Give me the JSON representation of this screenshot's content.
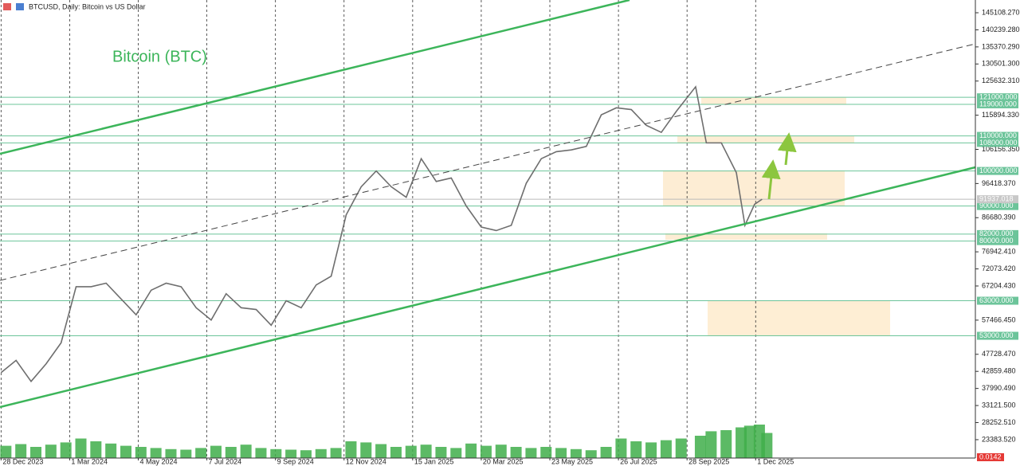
{
  "chart_data": {
    "type": "line",
    "title": "BTCUSD, Daily:  Bitcoin vs US Dollar",
    "annotation": "Bitcoin (BTC)",
    "x": [
      "28 Dec 2023",
      "11 Jan 2024",
      "25 Jan 2024",
      "8 Feb 2024",
      "22 Feb 2024",
      "7 Mar 2024",
      "21 Mar 2024",
      "4 Apr 2024",
      "18 Apr 2024",
      "2 May 2024",
      "16 May 2024",
      "30 May 2024",
      "13 Jun 2024",
      "27 Jun 2024",
      "11 Jul 2024",
      "25 Jul 2024",
      "8 Aug 2024",
      "22 Aug 2024",
      "5 Sep 2024",
      "19 Sep 2024",
      "3 Oct 2024",
      "17 Oct 2024",
      "31 Oct 2024",
      "14 Nov 2024",
      "28 Nov 2024",
      "12 Dec 2024",
      "26 Dec 2024",
      "9 Jan 2025",
      "23 Jan 2025",
      "6 Feb 2025",
      "20 Feb 2025",
      "6 Mar 2025",
      "20 Mar 2025",
      "3 Apr 2025",
      "17 Apr 2025",
      "1 May 2025",
      "15 May 2025",
      "29 May 2025",
      "12 Jun 2025",
      "26 Jun 2025",
      "10 Jul 2025",
      "24 Jul 2025",
      "7 Aug 2025",
      "21 Aug 2025",
      "4 Sep 2025",
      "18 Sep 2025",
      "6 Oct 2025",
      "16 Oct 2025",
      "30 Oct 2025",
      "13 Nov 2025",
      "21 Nov 2025",
      "30 Nov 2025",
      "7 Dec 2025"
    ],
    "series": [
      {
        "color": "#6e6e6e",
        "values": [
          42500,
          46000,
          40000,
          45000,
          51000,
          67000,
          67000,
          68000,
          63500,
          59000,
          66000,
          68000,
          67000,
          61000,
          57500,
          65000,
          61000,
          60500,
          56000,
          63000,
          61000,
          67500,
          70000,
          87500,
          95500,
          100000,
          95500,
          92500,
          103500,
          97000,
          98000,
          90000,
          84000,
          83000,
          84500,
          96500,
          103500,
          105500,
          106000,
          107000,
          116000,
          118000,
          117500,
          113000,
          111000,
          117000,
          124000,
          108000,
          108000,
          99500,
          84500,
          90500,
          91937.018
        ]
      },
      {
        "color": "#3fae4a",
        "axis": "y2",
        "values": [
          22,
          25,
          20,
          24,
          28,
          35,
          30,
          26,
          22,
          20,
          18,
          16,
          15,
          18,
          22,
          20,
          24,
          18,
          16,
          15,
          14,
          16,
          18,
          30,
          28,
          25,
          20,
          22,
          24,
          20,
          18,
          26,
          22,
          24,
          20,
          18,
          20,
          18,
          16,
          14,
          20,
          35,
          30,
          28,
          32,
          35,
          40,
          48,
          50,
          55,
          58,
          60,
          45
        ]
      }
    ],
    "xlim": [
      "27 Dec 2023",
      "24 Jun 2026"
    ],
    "xticks": [
      "28 Dec 2023",
      "1 Mar 2024",
      "4 May 2024",
      "7 Jul 2024",
      "9 Sep 2024",
      "12 Nov 2024",
      "15 Jan 2025",
      "20 Mar 2025",
      "23 May 2025",
      "26 Jul 2025",
      "28 Sep 2025",
      "1 Dec 2025"
    ],
    "ylim": [
      18149,
      148742
    ],
    "yticks": [
      {
        "value": 145108.27,
        "label": "145108.270"
      },
      {
        "value": 140239.28,
        "label": "140239.280"
      },
      {
        "value": 135370.29,
        "label": "135370.290"
      },
      {
        "value": 130501.3,
        "label": "130501.300"
      },
      {
        "value": 125632.31,
        "label": "125632.310"
      },
      {
        "value": 115894.33,
        "label": "115894.330"
      },
      {
        "value": 106156.35,
        "label": "106156.350"
      },
      {
        "value": 96418.37,
        "label": "96418.370"
      },
      {
        "value": 86680.39,
        "label": "86680.390"
      },
      {
        "value": 76942.41,
        "label": "76942.410"
      },
      {
        "value": 72073.42,
        "label": "72073.420"
      },
      {
        "value": 67204.43,
        "label": "67204.430"
      },
      {
        "value": 57466.45,
        "label": "57466.450"
      },
      {
        "value": 47728.47,
        "label": "47728.470"
      },
      {
        "value": 42859.48,
        "label": "42859.480"
      },
      {
        "value": 37990.49,
        "label": "37990.490"
      },
      {
        "value": 33121.5,
        "label": "33121.500"
      },
      {
        "value": 28252.51,
        "label": "28252.510"
      },
      {
        "value": 23383.52,
        "label": "23383.520"
      }
    ],
    "y2lim": [
      0,
      100
    ],
    "levels": [
      {
        "value": 121000,
        "label": "121000.000"
      },
      {
        "value": 119000,
        "label": "119000.000"
      },
      {
        "value": 110000,
        "label": "110000.000"
      },
      {
        "value": 108000,
        "label": "108000.000"
      },
      {
        "value": 100000,
        "label": "100000.000"
      },
      {
        "value": 90000,
        "label": "90000.000"
      },
      {
        "value": 82000,
        "label": "82000.000"
      },
      {
        "value": 80000,
        "label": "80000.000"
      },
      {
        "value": 63000,
        "label": "63000.000"
      },
      {
        "value": 53000,
        "label": "53000.000"
      }
    ],
    "level_color": "#6cc49a",
    "last_price": {
      "value": 91937.018,
      "label": "91937.018"
    },
    "volume_value": 0.0142,
    "grid": true
  }
}
